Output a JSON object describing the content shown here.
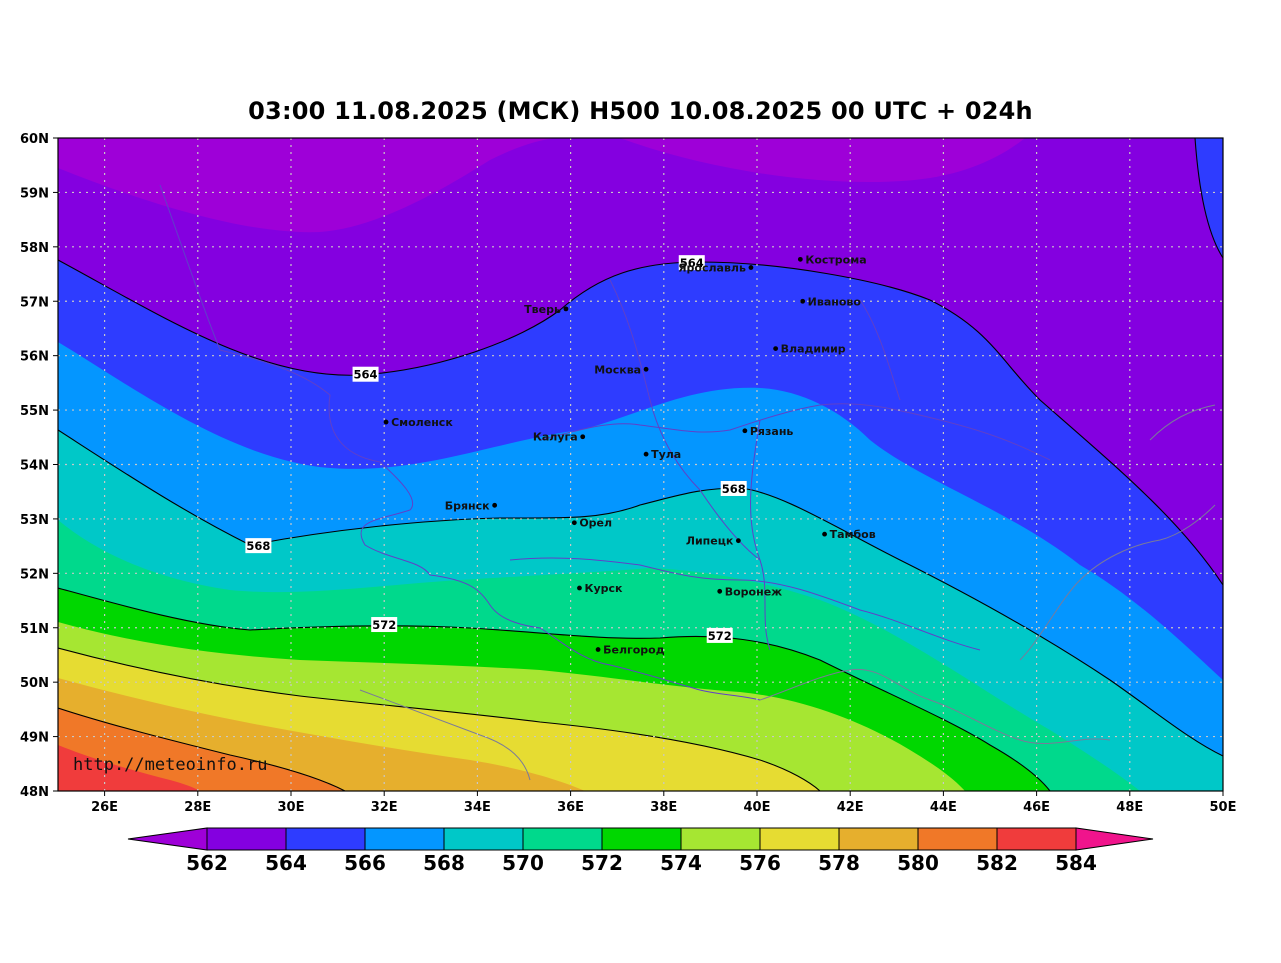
{
  "title": "03:00 11.08.2025 (МСК) H500  10.08.2025 00 UTC + 024h",
  "watermark": "http://meteoinfo.ru",
  "lat_labels": [
    "60N",
    "59N",
    "58N",
    "57N",
    "56N",
    "55N",
    "54N",
    "53N",
    "52N",
    "51N",
    "50N",
    "49N",
    "48N"
  ],
  "lon_labels": [
    "26E",
    "28E",
    "30E",
    "32E",
    "34E",
    "36E",
    "38E",
    "40E",
    "42E",
    "44E",
    "46E",
    "48E",
    "50E"
  ],
  "cities": [
    {
      "name": "Кострома",
      "lon": 40.93,
      "lat": 57.77
    },
    {
      "name": "Ярославль",
      "lon": 39.87,
      "lat": 57.62
    },
    {
      "name": "Иваново",
      "lon": 40.98,
      "lat": 57.0
    },
    {
      "name": "Тверь",
      "lon": 35.9,
      "lat": 56.86
    },
    {
      "name": "Владимир",
      "lon": 40.4,
      "lat": 56.13
    },
    {
      "name": "Москва",
      "lon": 37.62,
      "lat": 55.75
    },
    {
      "name": "Смоленск",
      "lon": 32.04,
      "lat": 54.78
    },
    {
      "name": "Калуга",
      "lon": 36.26,
      "lat": 54.51
    },
    {
      "name": "Рязань",
      "lon": 39.74,
      "lat": 54.62
    },
    {
      "name": "Тула",
      "lon": 37.62,
      "lat": 54.19
    },
    {
      "name": "Брянск",
      "lon": 34.37,
      "lat": 53.25
    },
    {
      "name": "Орел",
      "lon": 36.08,
      "lat": 52.93
    },
    {
      "name": "Липецк",
      "lon": 39.6,
      "lat": 52.6
    },
    {
      "name": "Тамбов",
      "lon": 41.45,
      "lat": 52.72
    },
    {
      "name": "Курск",
      "lon": 36.19,
      "lat": 51.73
    },
    {
      "name": "Воронеж",
      "lon": 39.2,
      "lat": 51.67
    },
    {
      "name": "Белгород",
      "lon": 36.59,
      "lat": 50.6
    }
  ],
  "contour_labels": [
    {
      "text": "564",
      "lon": 38.6,
      "lat": 57.7
    },
    {
      "text": "564",
      "lon": 31.6,
      "lat": 55.65
    },
    {
      "text": "568",
      "lon": 39.5,
      "lat": 53.55
    },
    {
      "text": "568",
      "lon": 29.3,
      "lat": 52.5
    },
    {
      "text": "572",
      "lon": 32.0,
      "lat": 51.05
    },
    {
      "text": "572",
      "lon": 39.2,
      "lat": 50.85
    }
  ],
  "colorbar": {
    "labels": [
      "562",
      "564",
      "566",
      "568",
      "570",
      "572",
      "574",
      "576",
      "578",
      "580",
      "582",
      "584"
    ],
    "colors": [
      "#9e00d8",
      "#8400e0",
      "#2e3cff",
      "#0496ff",
      "#00c8c8",
      "#00d98c",
      "#00d700",
      "#a6e632",
      "#e6dc32",
      "#e6af2d",
      "#f07828",
      "#f03c3c",
      "#f0148c"
    ]
  },
  "field_colors": {
    "c562": "#9e00d8",
    "c564": "#8400e0",
    "c566": "#2e3cff",
    "c568": "#0496ff",
    "c570": "#00c8c8",
    "c572": "#00d98c",
    "c574": "#00d700",
    "c576": "#a6e632",
    "c578": "#e6dc32",
    "c580": "#e6af2d",
    "c582": "#f07828",
    "c584": "#f03c3c"
  }
}
